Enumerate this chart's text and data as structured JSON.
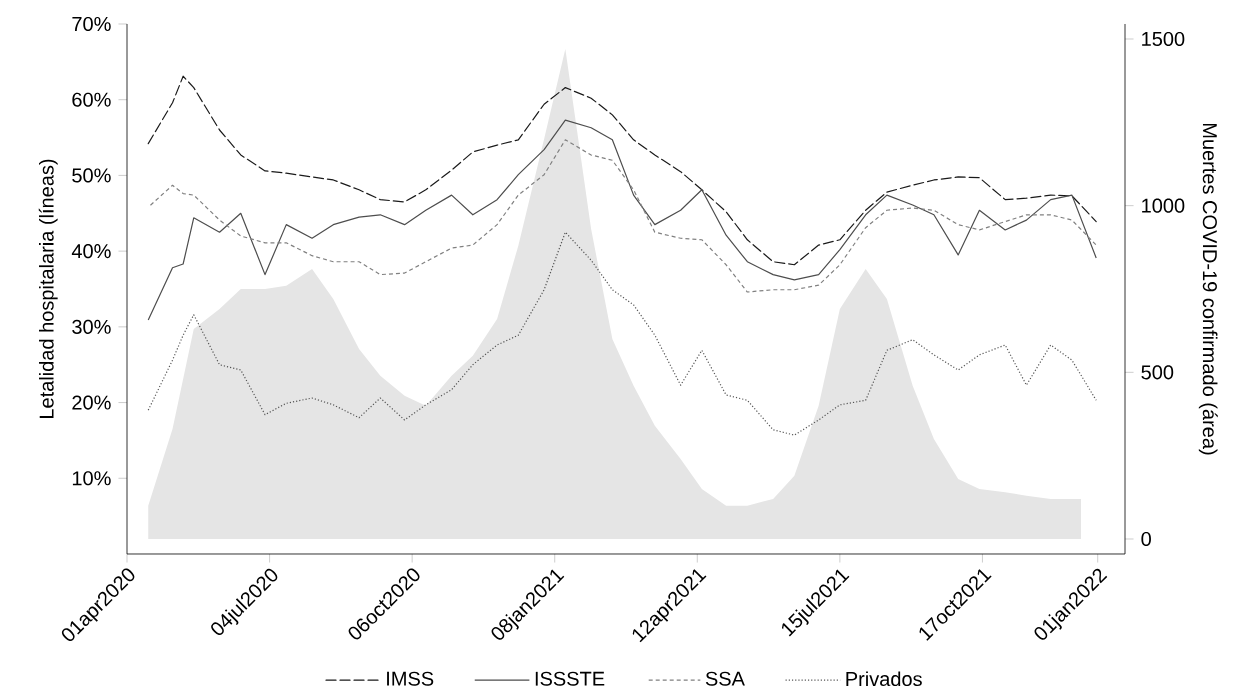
{
  "chart_data": {
    "type": "line",
    "ylabel": "Letalidad hospitalaria (líneas)",
    "y2label": "Muertes COVID-19 confirmado (área)",
    "x": [
      "2020-04-15",
      "2020-05-01",
      "2020-05-08",
      "2020-05-15",
      "2020-06-01",
      "2020-06-15",
      "2020-07-01",
      "2020-07-15",
      "2020-08-01",
      "2020-08-15",
      "2020-09-01",
      "2020-09-15",
      "2020-10-01",
      "2020-10-15",
      "2020-11-01",
      "2020-11-15",
      "2020-12-01",
      "2020-12-15",
      "2021-01-01",
      "2021-01-15",
      "2021-02-01",
      "2021-02-15",
      "2021-03-01",
      "2021-03-15",
      "2021-04-01",
      "2021-04-15",
      "2021-05-01",
      "2021-05-15",
      "2021-06-01",
      "2021-06-15",
      "2021-07-01",
      "2021-07-15",
      "2021-08-01",
      "2021-08-15",
      "2021-09-01",
      "2021-09-15",
      "2021-10-01",
      "2021-10-15",
      "2021-11-01",
      "2021-11-15",
      "2021-12-01",
      "2021-12-15",
      "2021-12-31"
    ],
    "series": [
      {
        "type": "area",
        "axis": "y2",
        "color": "#e5e5e5",
        "x": [
          "2020-04-15",
          "2020-05-01",
          "2020-05-08",
          "2020-05-15",
          "2020-06-01",
          "2020-06-15",
          "2020-07-01",
          "2020-07-15",
          "2020-08-01",
          "2020-08-15",
          "2020-09-01",
          "2020-09-15",
          "2020-10-01",
          "2020-10-15",
          "2020-11-01",
          "2020-11-15",
          "2020-12-01",
          "2020-12-15",
          "2021-01-01",
          "2021-01-15",
          "2021-02-01",
          "2021-02-15",
          "2021-03-01",
          "2021-03-15",
          "2021-04-01",
          "2021-04-15",
          "2021-05-01",
          "2021-05-15",
          "2021-06-01",
          "2021-06-15",
          "2021-07-01",
          "2021-07-15",
          "2021-08-01",
          "2021-08-15",
          "2021-09-01",
          "2021-09-15",
          "2021-10-01",
          "2021-10-15",
          "2021-11-01",
          "2021-11-15",
          "2021-12-01",
          "2021-12-15",
          "2021-12-21"
        ],
        "values": [
          100,
          330,
          480,
          630,
          690,
          750,
          750,
          760,
          810,
          720,
          570,
          490,
          430,
          400,
          490,
          550,
          660,
          880,
          1200,
          1470,
          930,
          600,
          460,
          340,
          240,
          150,
          100,
          100,
          120,
          190,
          400,
          690,
          810,
          720,
          460,
          300,
          180,
          150,
          140,
          130,
          120,
          120,
          120
        ]
      },
      {
        "name": "IMSS",
        "color": "#1a1a1a",
        "line_style": "dashed",
        "values": [
          54.2,
          59.6,
          63.1,
          61.6,
          56.0,
          52.7,
          50.6,
          50.3,
          49.8,
          49.4,
          48.1,
          46.8,
          46.5,
          48.1,
          50.7,
          53.1,
          54.0,
          54.7,
          59.4,
          61.6,
          60.2,
          58.0,
          54.7,
          52.7,
          50.5,
          48.1,
          45.2,
          41.5,
          38.6,
          38.2,
          40.8,
          41.5,
          45.4,
          47.8,
          48.7,
          49.4,
          49.8,
          49.7,
          46.8,
          47.0,
          47.4,
          47.3,
          43.9
        ]
      },
      {
        "name": "ISSSTE",
        "color": "#4d4d4d",
        "line_style": "solid",
        "values": [
          30.9,
          37.8,
          38.3,
          44.4,
          42.5,
          45.0,
          36.9,
          43.5,
          41.7,
          43.5,
          44.5,
          44.8,
          43.5,
          45.4,
          47.4,
          44.8,
          46.8,
          50.1,
          53.4,
          57.3,
          56.3,
          54.7,
          47.4,
          43.5,
          45.4,
          48.1,
          42.1,
          38.6,
          36.9,
          36.2,
          36.9,
          40.2,
          44.8,
          47.4,
          46.1,
          44.8,
          39.5,
          45.4,
          42.8,
          44.1,
          46.8,
          47.4,
          39.1
        ]
      },
      {
        "name": "SSA",
        "color": "#808080",
        "line_style": "dashed",
        "values": [
          45.8,
          48.7,
          47.6,
          47.4,
          44.1,
          42.0,
          41.1,
          41.1,
          39.4,
          38.6,
          38.6,
          36.9,
          37.1,
          38.6,
          40.4,
          40.8,
          43.5,
          47.4,
          50.1,
          54.7,
          52.7,
          52.0,
          48.1,
          42.5,
          41.7,
          41.5,
          38.2,
          34.6,
          34.9,
          34.9,
          35.5,
          38.2,
          43.1,
          45.4,
          45.7,
          45.4,
          43.5,
          42.8,
          43.9,
          44.8,
          44.8,
          44.1,
          40.8
        ]
      },
      {
        "name": "Privados",
        "color": "#555555",
        "line_style": "dotted",
        "values": [
          19.0,
          25.6,
          28.9,
          31.6,
          25.0,
          24.3,
          18.4,
          19.9,
          20.6,
          19.7,
          18.0,
          20.6,
          17.7,
          19.7,
          21.7,
          25.0,
          27.6,
          28.9,
          34.9,
          42.5,
          38.8,
          34.9,
          32.9,
          28.9,
          22.3,
          26.9,
          21.0,
          20.3,
          16.4,
          15.7,
          17.7,
          19.7,
          20.3,
          26.9,
          28.3,
          26.3,
          24.3,
          26.3,
          27.6,
          22.3,
          27.6,
          25.6,
          20.3
        ]
      }
    ],
    "xlim": [
      "2020-04-01",
      "2022-01-19"
    ],
    "xticks": [
      {
        "value": "2020-04-01",
        "label": "01apr2020"
      },
      {
        "value": "2020-07-04",
        "label": "04jul2020"
      },
      {
        "value": "2020-10-06",
        "label": "06oct2020"
      },
      {
        "value": "2021-01-08",
        "label": "08jan2021"
      },
      {
        "value": "2021-04-12",
        "label": "12apr2021"
      },
      {
        "value": "2021-07-15",
        "label": "15jul2021"
      },
      {
        "value": "2021-10-17",
        "label": "17oct2021"
      },
      {
        "value": "2022-01-01",
        "label": "01jan2022"
      }
    ],
    "ylim": [
      0,
      70
    ],
    "yticks": [
      {
        "value": 10,
        "label": "10%"
      },
      {
        "value": 20,
        "label": "20%"
      },
      {
        "value": 30,
        "label": "30%"
      },
      {
        "value": 40,
        "label": "40%"
      },
      {
        "value": 50,
        "label": "50%"
      },
      {
        "value": 60,
        "label": "60%"
      },
      {
        "value": 70,
        "label": "70%"
      }
    ],
    "y2lim": [
      -45,
      1545
    ],
    "y2ticks": [
      0,
      500,
      1000,
      1500
    ],
    "grid": false,
    "legend": "bottom"
  }
}
